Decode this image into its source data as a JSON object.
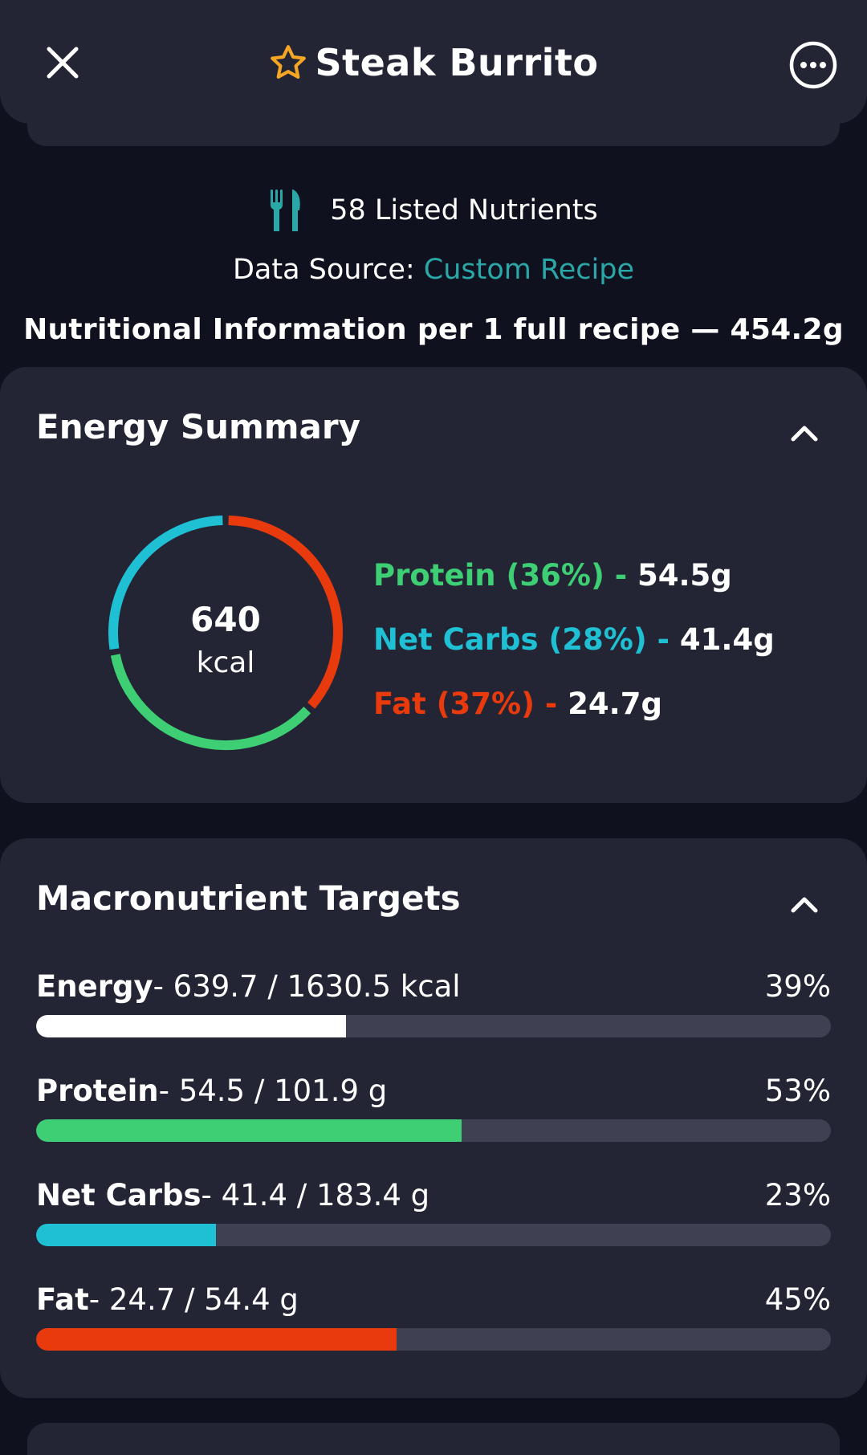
{
  "header": {
    "title": "Steak Burrito",
    "close_icon": "close-icon",
    "favorite_icon": "star-outline-icon",
    "more_icon": "more-options-icon",
    "star_color": "#f5a623"
  },
  "info": {
    "nutrients_count": "58 Listed Nutrients",
    "data_source_label": "Data Source: ",
    "data_source_value": "Custom Recipe",
    "per_recipe": "Nutritional Information per 1 full recipe  — 454.2g"
  },
  "energy_summary": {
    "title": "Energy Summary",
    "kcal_value": "640",
    "kcal_unit": "kcal",
    "legend": [
      {
        "label": "Protein (36%)",
        "sep": " - ",
        "value": "54.5g",
        "color": "#3ecf74"
      },
      {
        "label": "Net Carbs (28%)",
        "sep": " - ",
        "value": "41.4g",
        "color": "#1fc0d4"
      },
      {
        "label": "Fat (37%)",
        "sep": " - ",
        "value": "24.7g",
        "color": "#e83a0d"
      }
    ]
  },
  "chart_data": {
    "type": "pie",
    "categories": [
      "Protein",
      "Net Carbs",
      "Fat"
    ],
    "values": [
      36,
      28,
      37
    ],
    "colors": [
      "#3ecf74",
      "#1fc0d4",
      "#e83a0d"
    ]
  },
  "macro_targets": {
    "title": "Macronutrient Targets",
    "rows": [
      {
        "name": "Energy",
        "detail": "- 639.7 / 1630.5 kcal",
        "pct": "39%",
        "fraction": 0.39,
        "color": "#ffffff"
      },
      {
        "name": "Protein",
        "detail": "- 54.5 / 101.9 g",
        "pct": "53%",
        "fraction": 0.535,
        "color": "#3ecf74"
      },
      {
        "name": "Net Carbs",
        "detail": "- 41.4 / 183.4 g",
        "pct": "23%",
        "fraction": 0.226,
        "color": "#1fc0d4"
      },
      {
        "name": "Fat",
        "detail": "- 24.7 / 54.4 g",
        "pct": "45%",
        "fraction": 0.454,
        "color": "#e83a0d"
      }
    ]
  }
}
